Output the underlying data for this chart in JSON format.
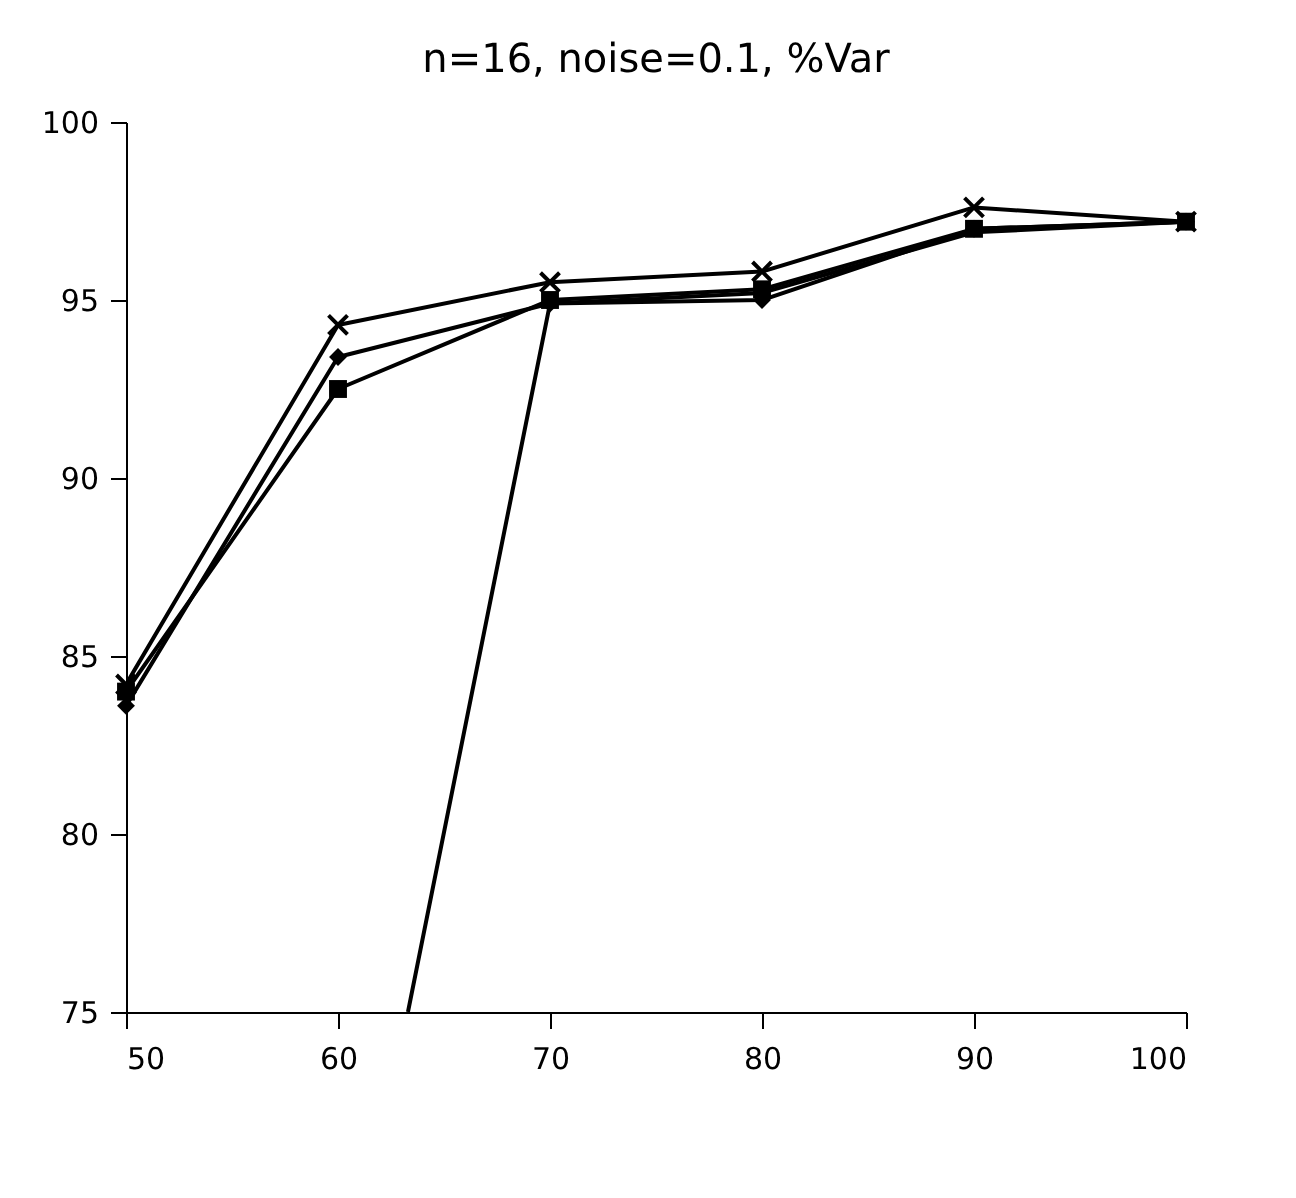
{
  "chart_data": {
    "type": "line",
    "title": "n=16, noise=0.1, %Var",
    "x": [
      50,
      60,
      70,
      80,
      90,
      100
    ],
    "series": [
      {
        "color": "#000000",
        "marker": "diamond",
        "values": [
          83.6,
          93.4,
          94.9,
          95.0,
          97.0,
          97.2
        ]
      },
      {
        "color": "#000000",
        "marker": "square",
        "values": [
          84.0,
          92.5,
          95.0,
          95.3,
          97.0,
          97.2
        ]
      },
      {
        "color": "#000000",
        "marker": "none",
        "x": [
          63.3,
          70,
          80,
          90,
          100
        ],
        "values": [
          75,
          94.9,
          95.2,
          96.9,
          97.2
        ]
      },
      {
        "color": "#000000",
        "marker": "cross",
        "values": [
          84.2,
          94.3,
          95.5,
          95.8,
          97.6,
          97.2
        ]
      }
    ],
    "xlim": [
      50,
      100
    ],
    "xticks": [
      50,
      60,
      70,
      80,
      90,
      100
    ],
    "ylim": [
      75,
      100
    ],
    "yticks": [
      75,
      80,
      85,
      90,
      95,
      100
    ],
    "line_style": "solid"
  }
}
